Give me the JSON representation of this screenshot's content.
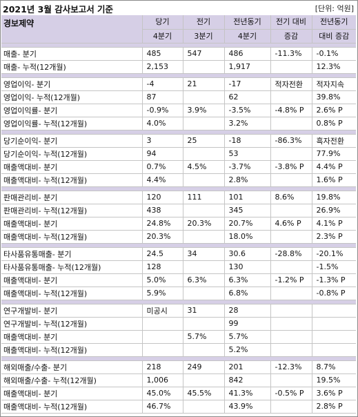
{
  "title": "2021년 3월 감사보고서 기준",
  "unit": "[단위: 억원]",
  "header": {
    "company": "경보제약",
    "col1": [
      "당기",
      "4분기"
    ],
    "col2": [
      "전기",
      "3분기"
    ],
    "col3": [
      "전년동기",
      "4분기"
    ],
    "col4": [
      "전기 대비",
      "증감"
    ],
    "col5": [
      "전년동기",
      "대비 증감"
    ]
  },
  "groups": [
    [
      [
        "매출- 분기",
        "485",
        "547",
        "486",
        "-11.3%",
        "-0.1%"
      ],
      [
        "매출- 누적(12개월)",
        "2,153",
        "",
        "1,917",
        "",
        "12.3%"
      ]
    ],
    [
      [
        "영업이익- 분기",
        "-4",
        "21",
        "-17",
        "적자전환",
        "적자지속"
      ],
      [
        "영업이익- 누적(12개월)",
        "87",
        "",
        "62",
        "",
        "39.8%"
      ],
      [
        "영업이익률- 분기",
        "-0.9%",
        "3.9%",
        "-3.5%",
        "-4.8% P",
        "2.6% P"
      ],
      [
        "영업이익률- 누적(12개월)",
        "4.0%",
        "",
        "3.2%",
        "",
        "0.8% P"
      ]
    ],
    [
      [
        "당기순이익- 분기",
        "3",
        "25",
        "-18",
        "-86.3%",
        "흑자전환"
      ],
      [
        "당기순이익- 누적(12개월)",
        "94",
        "",
        "53",
        "",
        "77.9%"
      ],
      [
        "매출액대비- 분기",
        "0.7%",
        "4.5%",
        "-3.7%",
        "-3.8% P",
        "4.4% P"
      ],
      [
        "매출액대비- 누적(12개월)",
        "4.4%",
        "",
        "2.8%",
        "",
        "1.6% P"
      ]
    ],
    [
      [
        "판매관리비- 분기",
        "120",
        "111",
        "101",
        "8.6%",
        "19.8%"
      ],
      [
        "판매관리비- 누적(12개월)",
        "438",
        "",
        "345",
        "",
        "26.9%"
      ],
      [
        "매출액대비- 분기",
        "24.8%",
        "20.3%",
        "20.7%",
        "4.6% P",
        "4.1% P"
      ],
      [
        "매출액대비- 누적(12개월)",
        "20.3%",
        "",
        "18.0%",
        "",
        "2.3% P"
      ]
    ],
    [
      [
        "타사품유통매출- 분기",
        "24.5",
        "34",
        "30.6",
        "-28.8%",
        "-20.1%"
      ],
      [
        "타사품유통매출- 누적(12개월)",
        "128",
        "",
        "130",
        "",
        "-1.5%"
      ],
      [
        "매출액대비- 분기",
        "5.0%",
        "6.3%",
        "6.3%",
        "-1.2% P",
        "-1.3% P"
      ],
      [
        "매출액대비- 누적(12개월)",
        "5.9%",
        "",
        "6.8%",
        "",
        "-0.8% P"
      ]
    ],
    [
      [
        "연구개발비- 분기",
        "미공시",
        "31",
        "28",
        "",
        ""
      ],
      [
        "연구개발비- 누적(12개월)",
        "",
        "",
        "99",
        "",
        ""
      ],
      [
        "매출액대비- 분기",
        "",
        "5.7%",
        "5.7%",
        "",
        ""
      ],
      [
        "매출액대비- 누적(12개월)",
        "",
        "",
        "5.2%",
        "",
        ""
      ]
    ],
    [
      [
        "해외매출/수출- 분기",
        "218",
        "249",
        "201",
        "-12.3%",
        "8.7%"
      ],
      [
        "해외매출/수출- 누적(12개월)",
        "1,006",
        "",
        "842",
        "",
        "19.5%"
      ],
      [
        "매출액대비- 분기",
        "45.0%",
        "45.5%",
        "41.3%",
        "-0.5% P",
        "3.6% P"
      ],
      [
        "매출액대비- 누적(12개월)",
        "46.7%",
        "",
        "43.9%",
        "",
        "2.8% P"
      ]
    ]
  ]
}
